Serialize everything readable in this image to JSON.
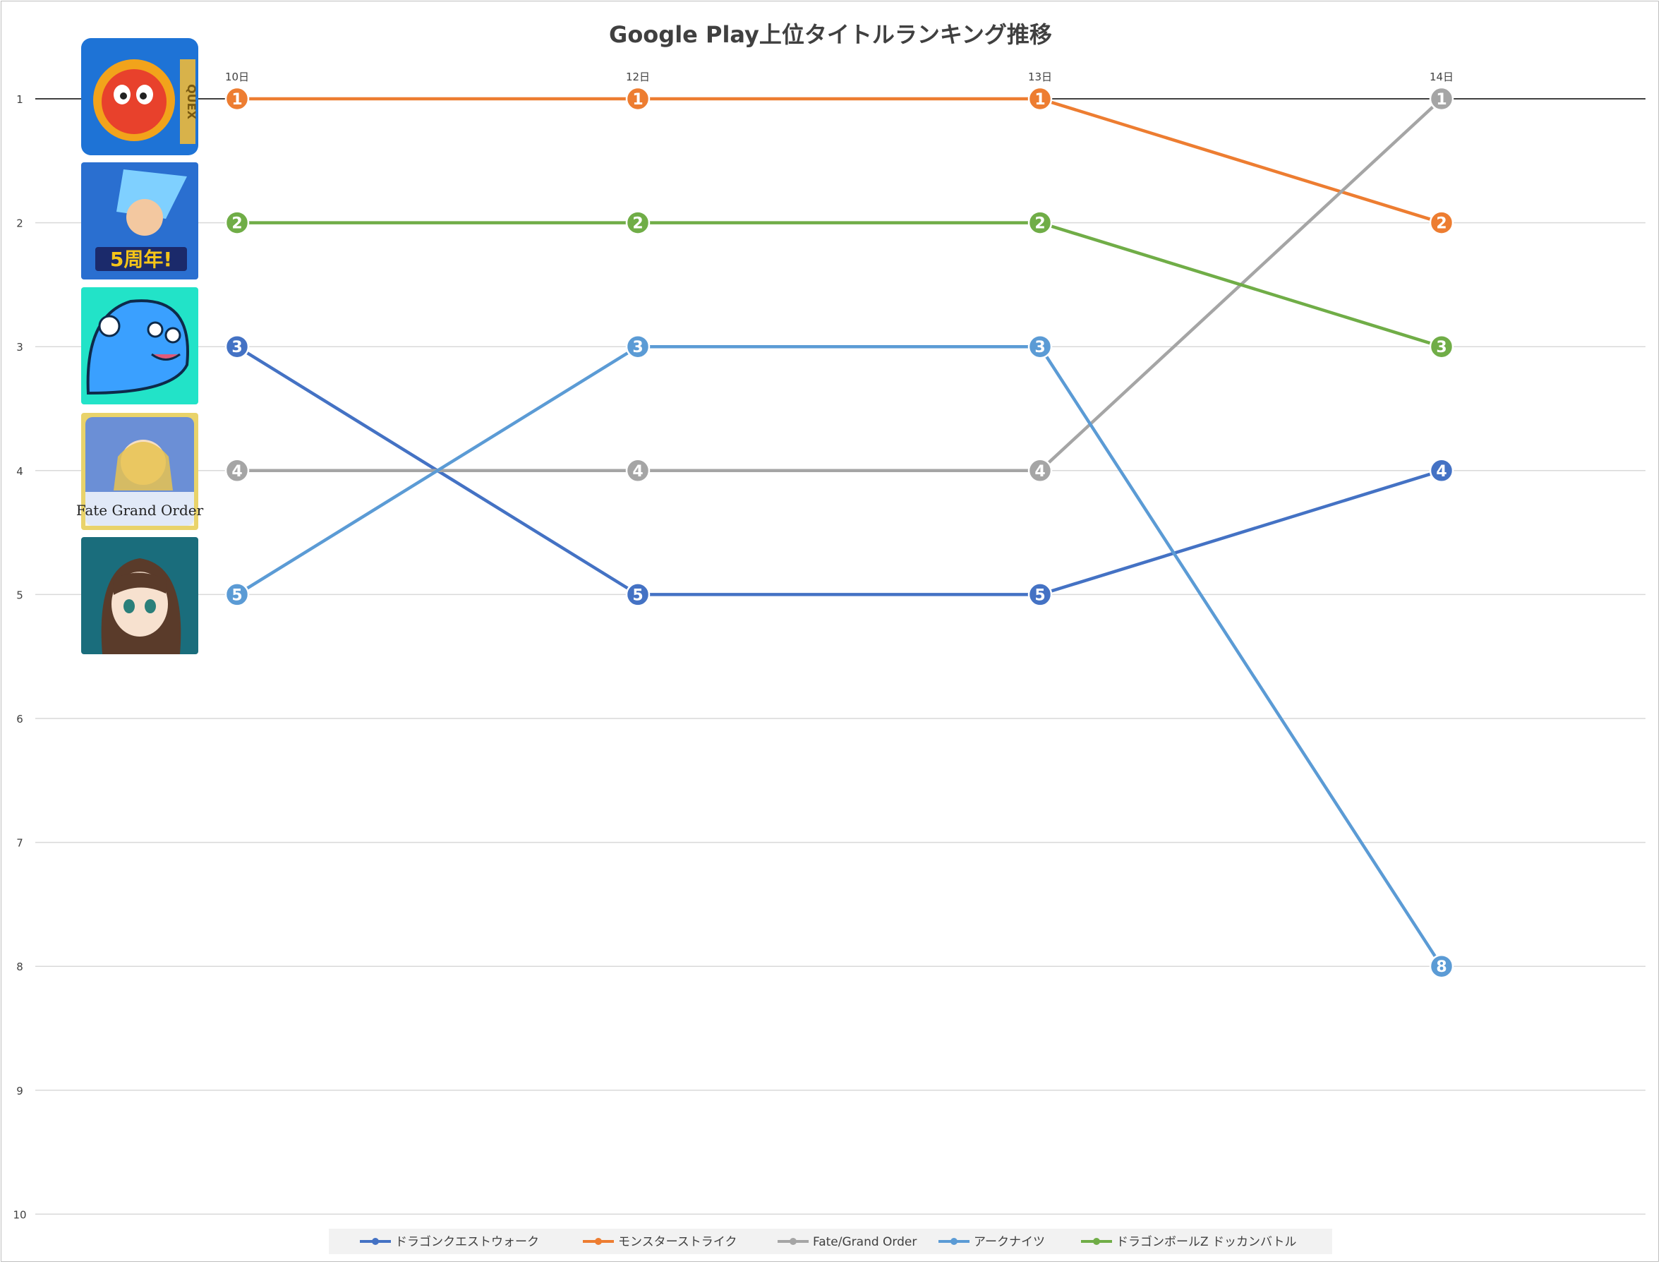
{
  "chart_data": {
    "type": "line",
    "title": "Google Play上位タイトルランキング推移",
    "xlabel": "",
    "ylabel": "",
    "categories": [
      "10日",
      "12日",
      "13日",
      "14日"
    ],
    "y_ticks": [
      "1",
      "2",
      "3",
      "4",
      "5",
      "6",
      "7",
      "8",
      "9",
      "10"
    ],
    "ylim": [
      1,
      10
    ],
    "y_reversed": true,
    "grid": true,
    "legend_position": "bottom",
    "series": [
      {
        "name": "ドラゴンクエストウォーク",
        "color": "#4472c4",
        "values": [
          3,
          5,
          5,
          4
        ]
      },
      {
        "name": "モンスターストライク",
        "color": "#ed7d31",
        "values": [
          1,
          1,
          1,
          2
        ]
      },
      {
        "name": "Fate/Grand Order",
        "color": "#a5a5a5",
        "values": [
          4,
          4,
          4,
          1
        ]
      },
      {
        "name": "アークナイツ",
        "color": "#5b9bd5",
        "values": [
          5,
          3,
          3,
          8
        ]
      },
      {
        "name": "ドラゴンボールZ ドッカンバトル",
        "color": "#70ad47",
        "values": [
          2,
          2,
          2,
          3
        ]
      }
    ]
  },
  "app_icons": [
    {
      "icon": "monster-strike-app-icon",
      "text": "QUEX",
      "bg": "#1e73d6",
      "fg": "#e8412c"
    },
    {
      "icon": "dokkan-battle-app-icon",
      "text": "5周年!",
      "bg": "#2a6fd0",
      "fg": "#f5c518"
    },
    {
      "icon": "dragon-quest-walk-app-icon",
      "text": "",
      "bg": "#22e3c8",
      "fg": "#3aa0ff"
    },
    {
      "icon": "fate-grand-order-app-icon",
      "text": "Fate Grand Order",
      "bg": "#e9d36a",
      "fg": "#6b8fd6"
    },
    {
      "icon": "arknights-app-icon",
      "text": "",
      "bg": "#1a6d7c",
      "fg": "#5a3b2a"
    }
  ]
}
